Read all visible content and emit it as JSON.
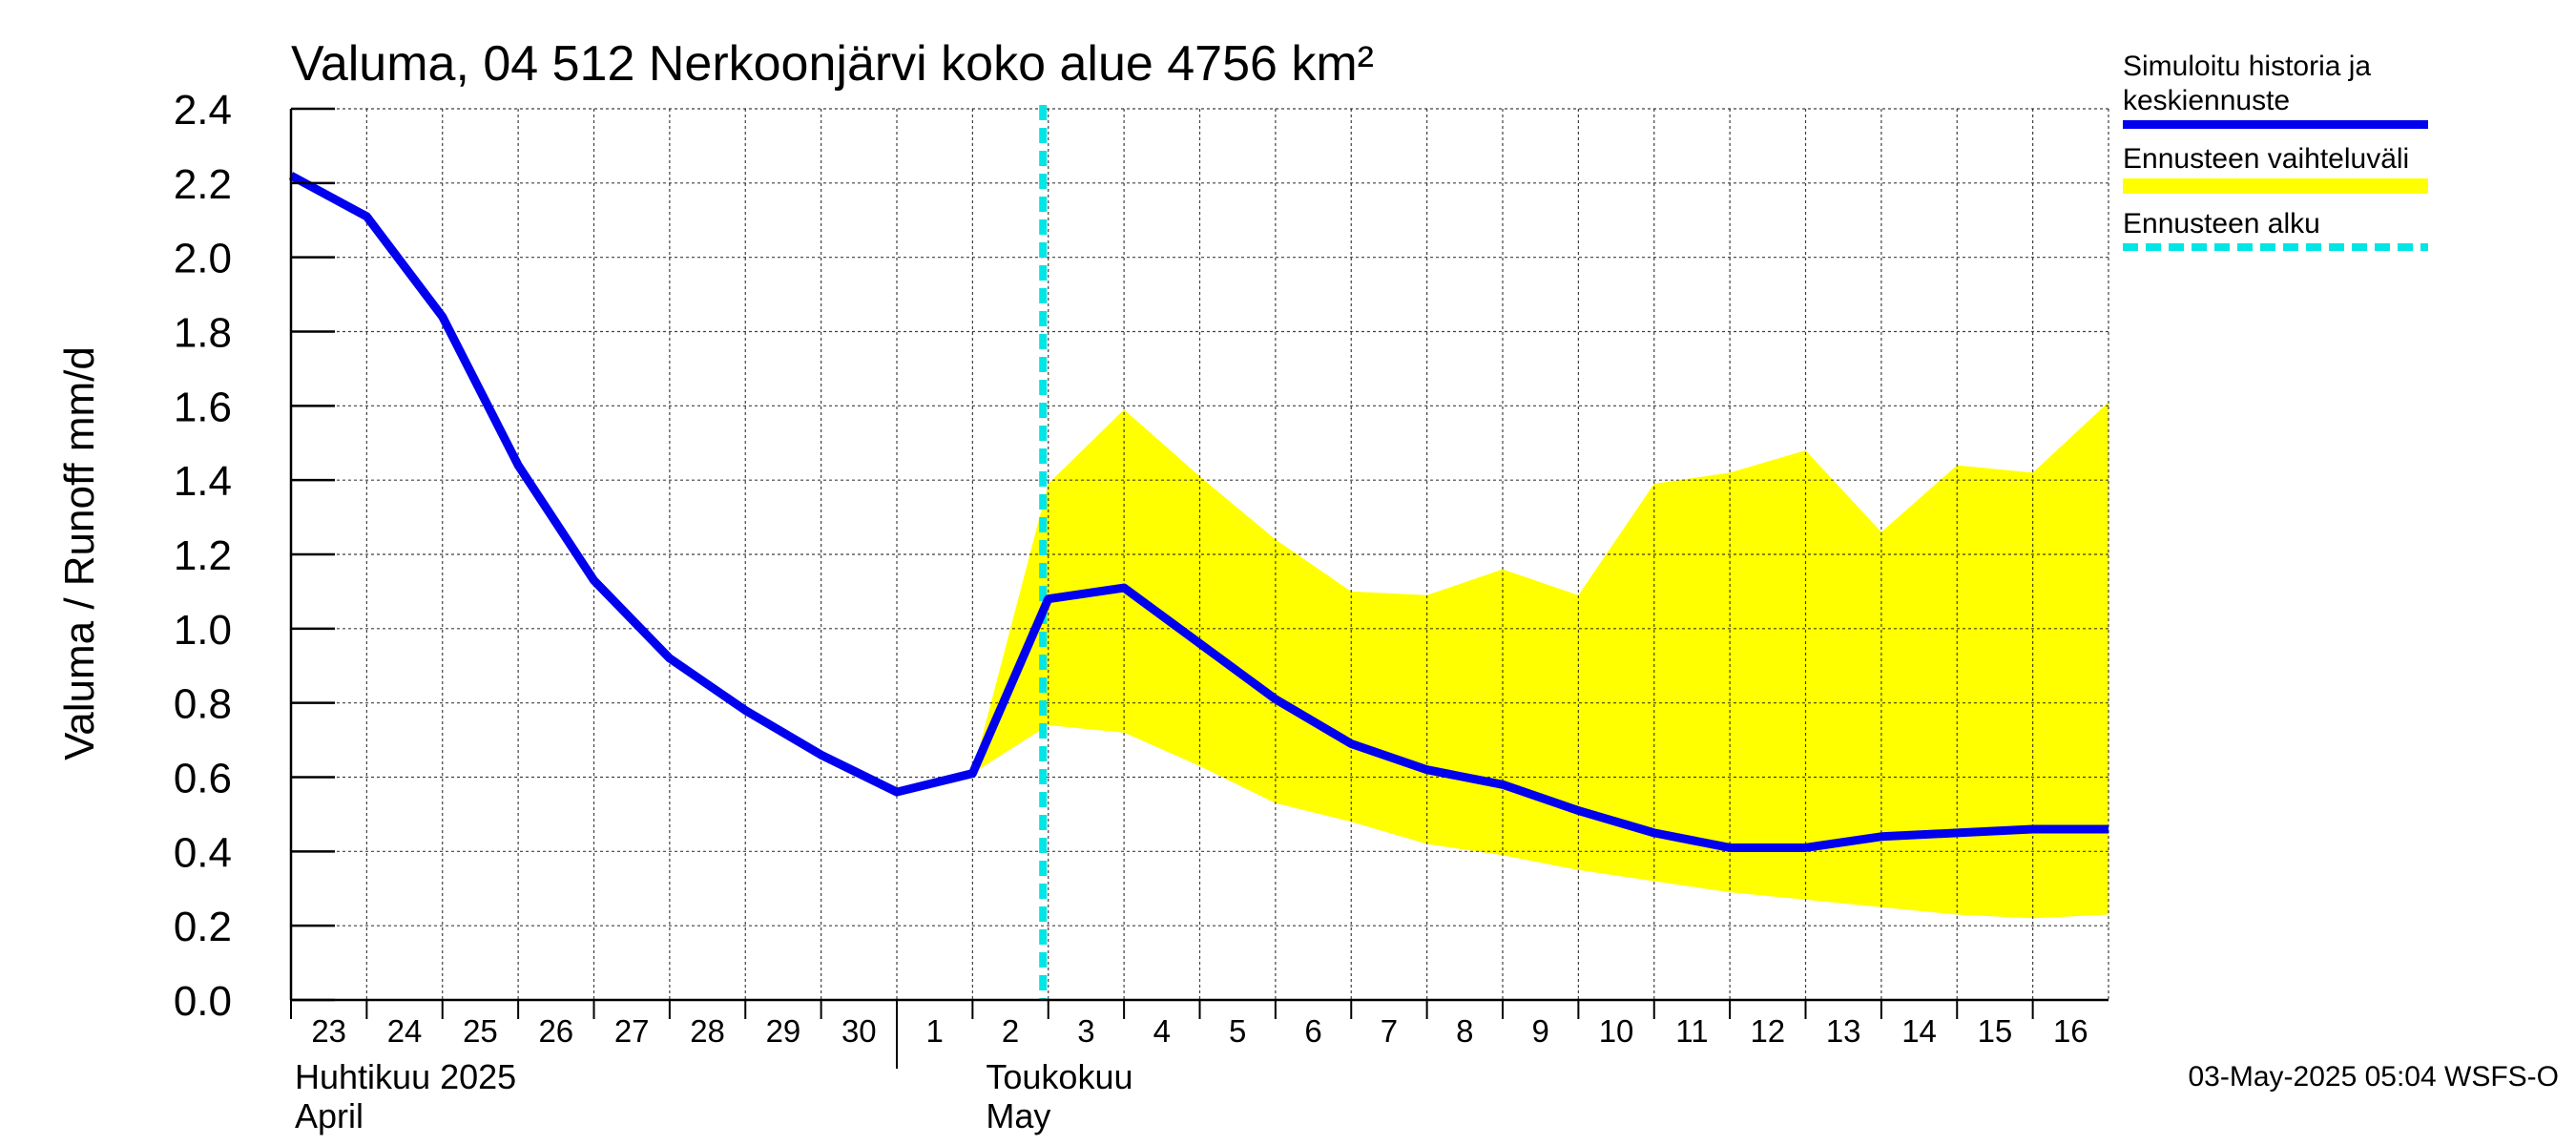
{
  "chart_data": {
    "type": "area",
    "title": "Valuma, 04 512 Nerkoonjärvi koko alue 4756 km²",
    "ylabel": "Valuma / Runoff    mm/d",
    "ylim": [
      0,
      2.4
    ],
    "yticks": [
      "0.0",
      "0.2",
      "0.4",
      "0.6",
      "0.8",
      "1.0",
      "1.2",
      "1.4",
      "1.6",
      "1.8",
      "2.0",
      "2.2",
      "2.4"
    ],
    "x_tick_labels": [
      "23",
      "24",
      "25",
      "26",
      "27",
      "28",
      "29",
      "30",
      "1",
      "2",
      "3",
      "4",
      "5",
      "6",
      "7",
      "8",
      "9",
      "10",
      "11",
      "12",
      "13",
      "14",
      "15",
      "16"
    ],
    "month_labels": [
      {
        "line1": "Huhtikuu  2025",
        "line2": "April"
      },
      {
        "line1": "Toukokuu",
        "line2": "May"
      }
    ],
    "grid": true,
    "x_dates": [
      "2025-04-23",
      "2025-04-24",
      "2025-04-25",
      "2025-04-26",
      "2025-04-27",
      "2025-04-28",
      "2025-04-29",
      "2025-04-30",
      "2025-05-01",
      "2025-05-02",
      "2025-05-03",
      "2025-05-04",
      "2025-05-05",
      "2025-05-06",
      "2025-05-07",
      "2025-05-08",
      "2025-05-09",
      "2025-05-10",
      "2025-05-11",
      "2025-05-12",
      "2025-05-13",
      "2025-05-14",
      "2025-05-15",
      "2025-05-16",
      "2025-05-17"
    ],
    "series": [
      {
        "name": "Simuloitu historia ja keskiennuste",
        "color": "#0000ee",
        "x": [
          "2025-04-23",
          "2025-04-24",
          "2025-04-25",
          "2025-04-26",
          "2025-04-27",
          "2025-04-28",
          "2025-04-29",
          "2025-04-30",
          "2025-05-01",
          "2025-05-02",
          "2025-05-03",
          "2025-05-04",
          "2025-05-05",
          "2025-05-06",
          "2025-05-07",
          "2025-05-08",
          "2025-05-09",
          "2025-05-10",
          "2025-05-11",
          "2025-05-12",
          "2025-05-13",
          "2025-05-14",
          "2025-05-15",
          "2025-05-16",
          "2025-05-17"
        ],
        "values": [
          2.22,
          2.11,
          1.84,
          1.44,
          1.13,
          0.92,
          0.78,
          0.66,
          0.56,
          0.61,
          1.08,
          1.11,
          0.96,
          0.81,
          0.69,
          0.62,
          0.58,
          0.51,
          0.45,
          0.41,
          0.41,
          0.44,
          0.45,
          0.46,
          0.46
        ]
      },
      {
        "name": "Ennusteen vaihteluväli",
        "color": "#ffff00",
        "x": [
          "2025-05-02",
          "2025-05-03",
          "2025-05-04",
          "2025-05-05",
          "2025-05-06",
          "2025-05-07",
          "2025-05-08",
          "2025-05-09",
          "2025-05-10",
          "2025-05-11",
          "2025-05-12",
          "2025-05-13",
          "2025-05-14",
          "2025-05-15",
          "2025-05-16",
          "2025-05-17"
        ],
        "upper": [
          0.61,
          1.39,
          1.59,
          1.41,
          1.24,
          1.1,
          1.09,
          1.16,
          1.09,
          1.39,
          1.42,
          1.48,
          1.26,
          1.44,
          1.42,
          1.61
        ],
        "lower": [
          0.61,
          0.74,
          0.72,
          0.63,
          0.53,
          0.48,
          0.42,
          0.39,
          0.35,
          0.32,
          0.29,
          0.27,
          0.25,
          0.23,
          0.22,
          0.23
        ]
      }
    ],
    "forecast_start": {
      "name": "Ennusteen alku",
      "x": "2025-05-03",
      "color": "#00e5e5"
    }
  },
  "legend": {
    "items": [
      {
        "label": "Simuloitu historia ja keskiennuste"
      },
      {
        "label": "Ennusteen vaihteluväli"
      },
      {
        "label": "Ennusteen alku"
      }
    ]
  },
  "footer": {
    "timestamp": "03-May-2025 05:04 WSFS-O"
  }
}
